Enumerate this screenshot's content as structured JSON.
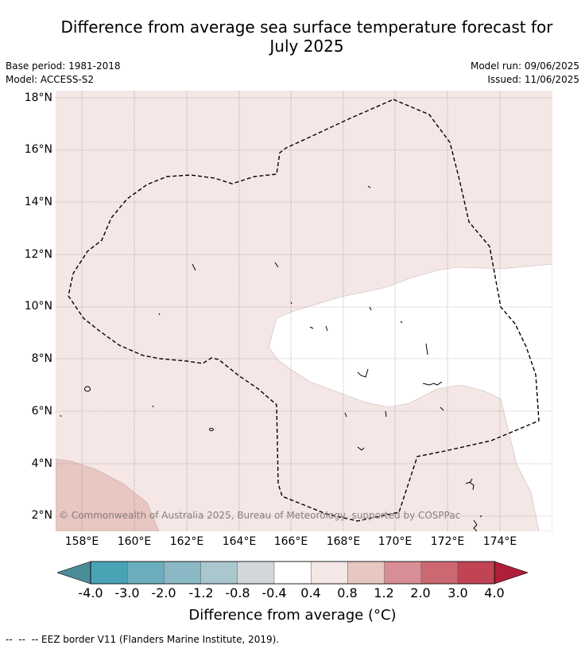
{
  "title_line1": "Difference from average sea surface temperature forecast for",
  "title_line2": "July 2025",
  "base_period": "Base period: 1981-2018",
  "model": "Model: ACCESS-S2",
  "model_run": "Model run: 09/06/2025",
  "issued": "Issued: 11/06/2025",
  "latitudes": [
    "18°N",
    "16°N",
    "14°N",
    "12°N",
    "10°N",
    "8°N",
    "6°N",
    "4°N",
    "2°N"
  ],
  "longitudes": [
    "158°E",
    "160°E",
    "162°E",
    "164°E",
    "166°E",
    "168°E",
    "170°E",
    "172°E",
    "174°E"
  ],
  "copyright": "© Commonwealth of Australia 2025, Bureau of Meteorology, supported by COSPPac",
  "colorbar": {
    "ticks": [
      "-4.0",
      "-3.0",
      "-2.0",
      "-1.2",
      "-0.8",
      "-0.4",
      "0.4",
      "0.8",
      "1.2",
      "2.0",
      "3.0",
      "4.0"
    ],
    "colors": [
      "#4a8d98",
      "#4aa3b5",
      "#6aaebd",
      "#8ab8c4",
      "#a9c7cc",
      "#d2d8da",
      "#ffffff",
      "#f4e7e6",
      "#e8c6c2",
      "#d98e95",
      "#cb6871",
      "#c04453",
      "#b11e3c"
    ],
    "label": "Difference from average (°C)"
  },
  "legend_footer": "--  --  -- EEZ border V11 (Flanders Marine Institute, 2019).",
  "map_colors": {
    "light_anomaly": "#f4e7e6",
    "warm_anomaly": "#e8c6c2",
    "neutral": "#ffffff"
  }
}
